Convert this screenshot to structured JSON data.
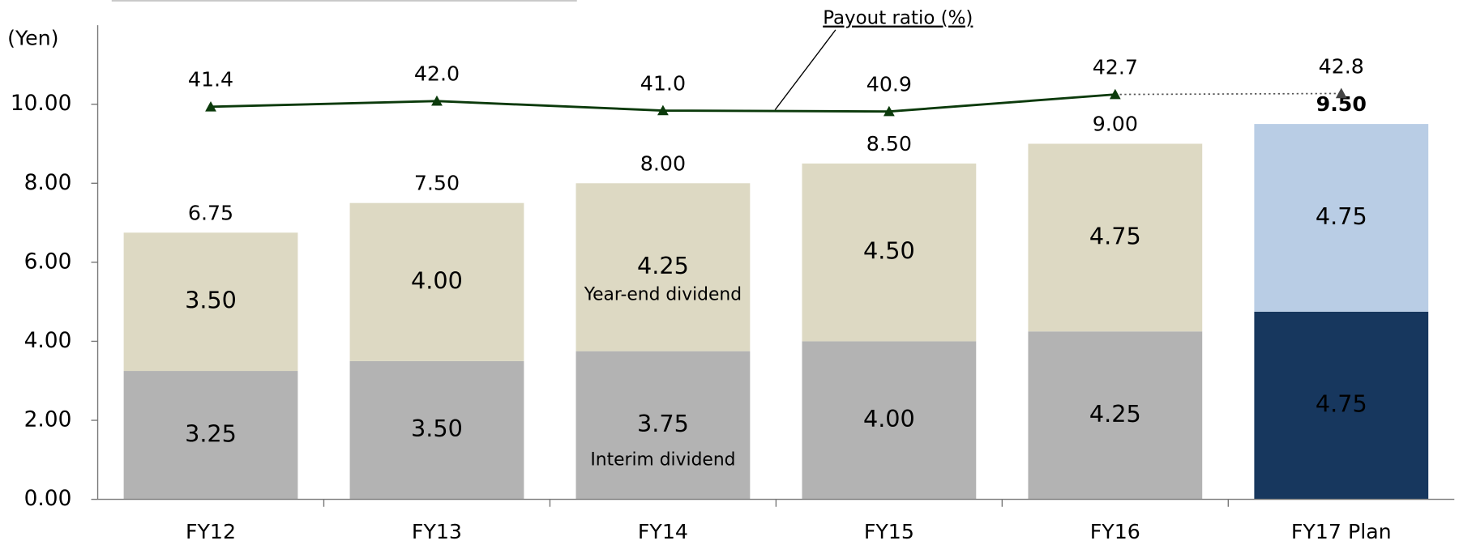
{
  "chart_data": {
    "type": "stacked-bar-line",
    "y_label": "(Yen)",
    "categories": [
      "FY12",
      "FY13",
      "FY14",
      "FY15",
      "FY16",
      "FY17 Plan"
    ],
    "ylim": [
      0,
      12
    ],
    "yticks": [
      {
        "value": 0,
        "label": "0.00"
      },
      {
        "value": 2,
        "label": "2.00"
      },
      {
        "value": 4,
        "label": "4.00"
      },
      {
        "value": 6,
        "label": "6.00"
      },
      {
        "value": 8,
        "label": "8.00"
      },
      {
        "value": 10,
        "label": "10.00"
      }
    ],
    "y2lim": [
      0,
      50
    ],
    "series": [
      {
        "name": "Interim dividend",
        "colors": [
          "#b3b3b3",
          "#b3b3b3",
          "#b3b3b3",
          "#b3b3b3",
          "#b3b3b3",
          "#17375e"
        ],
        "values": [
          3.25,
          3.5,
          3.75,
          4.0,
          4.25,
          4.75
        ],
        "value_labels": [
          "3.25",
          "3.50",
          "3.75",
          "4.00",
          "4.25",
          "4.75"
        ]
      },
      {
        "name": "Year-end dividend",
        "colors": [
          "#ddd9c3",
          "#ddd9c3",
          "#ddd9c3",
          "#ddd9c3",
          "#ddd9c3",
          "#b9cde5"
        ],
        "values": [
          3.5,
          4.0,
          4.25,
          4.5,
          4.75,
          4.75
        ],
        "value_labels": [
          "3.50",
          "4.00",
          "4.25",
          "4.50",
          "4.75",
          "4.75"
        ]
      },
      {
        "name": "Payout ratio (%)",
        "type": "line",
        "axis": "y2",
        "color": "#0b3a0b",
        "values": [
          41.4,
          42.0,
          41.0,
          40.9,
          42.7,
          42.8
        ],
        "value_labels": [
          "41.4",
          "42.0",
          "41.0",
          "40.9",
          "42.7",
          "42.8"
        ]
      }
    ],
    "totals": [
      6.75,
      7.5,
      8.0,
      8.5,
      9.0,
      9.5
    ],
    "total_labels": [
      "6.75",
      "7.50",
      "8.00",
      "8.50",
      "9.00",
      "9.50"
    ]
  }
}
